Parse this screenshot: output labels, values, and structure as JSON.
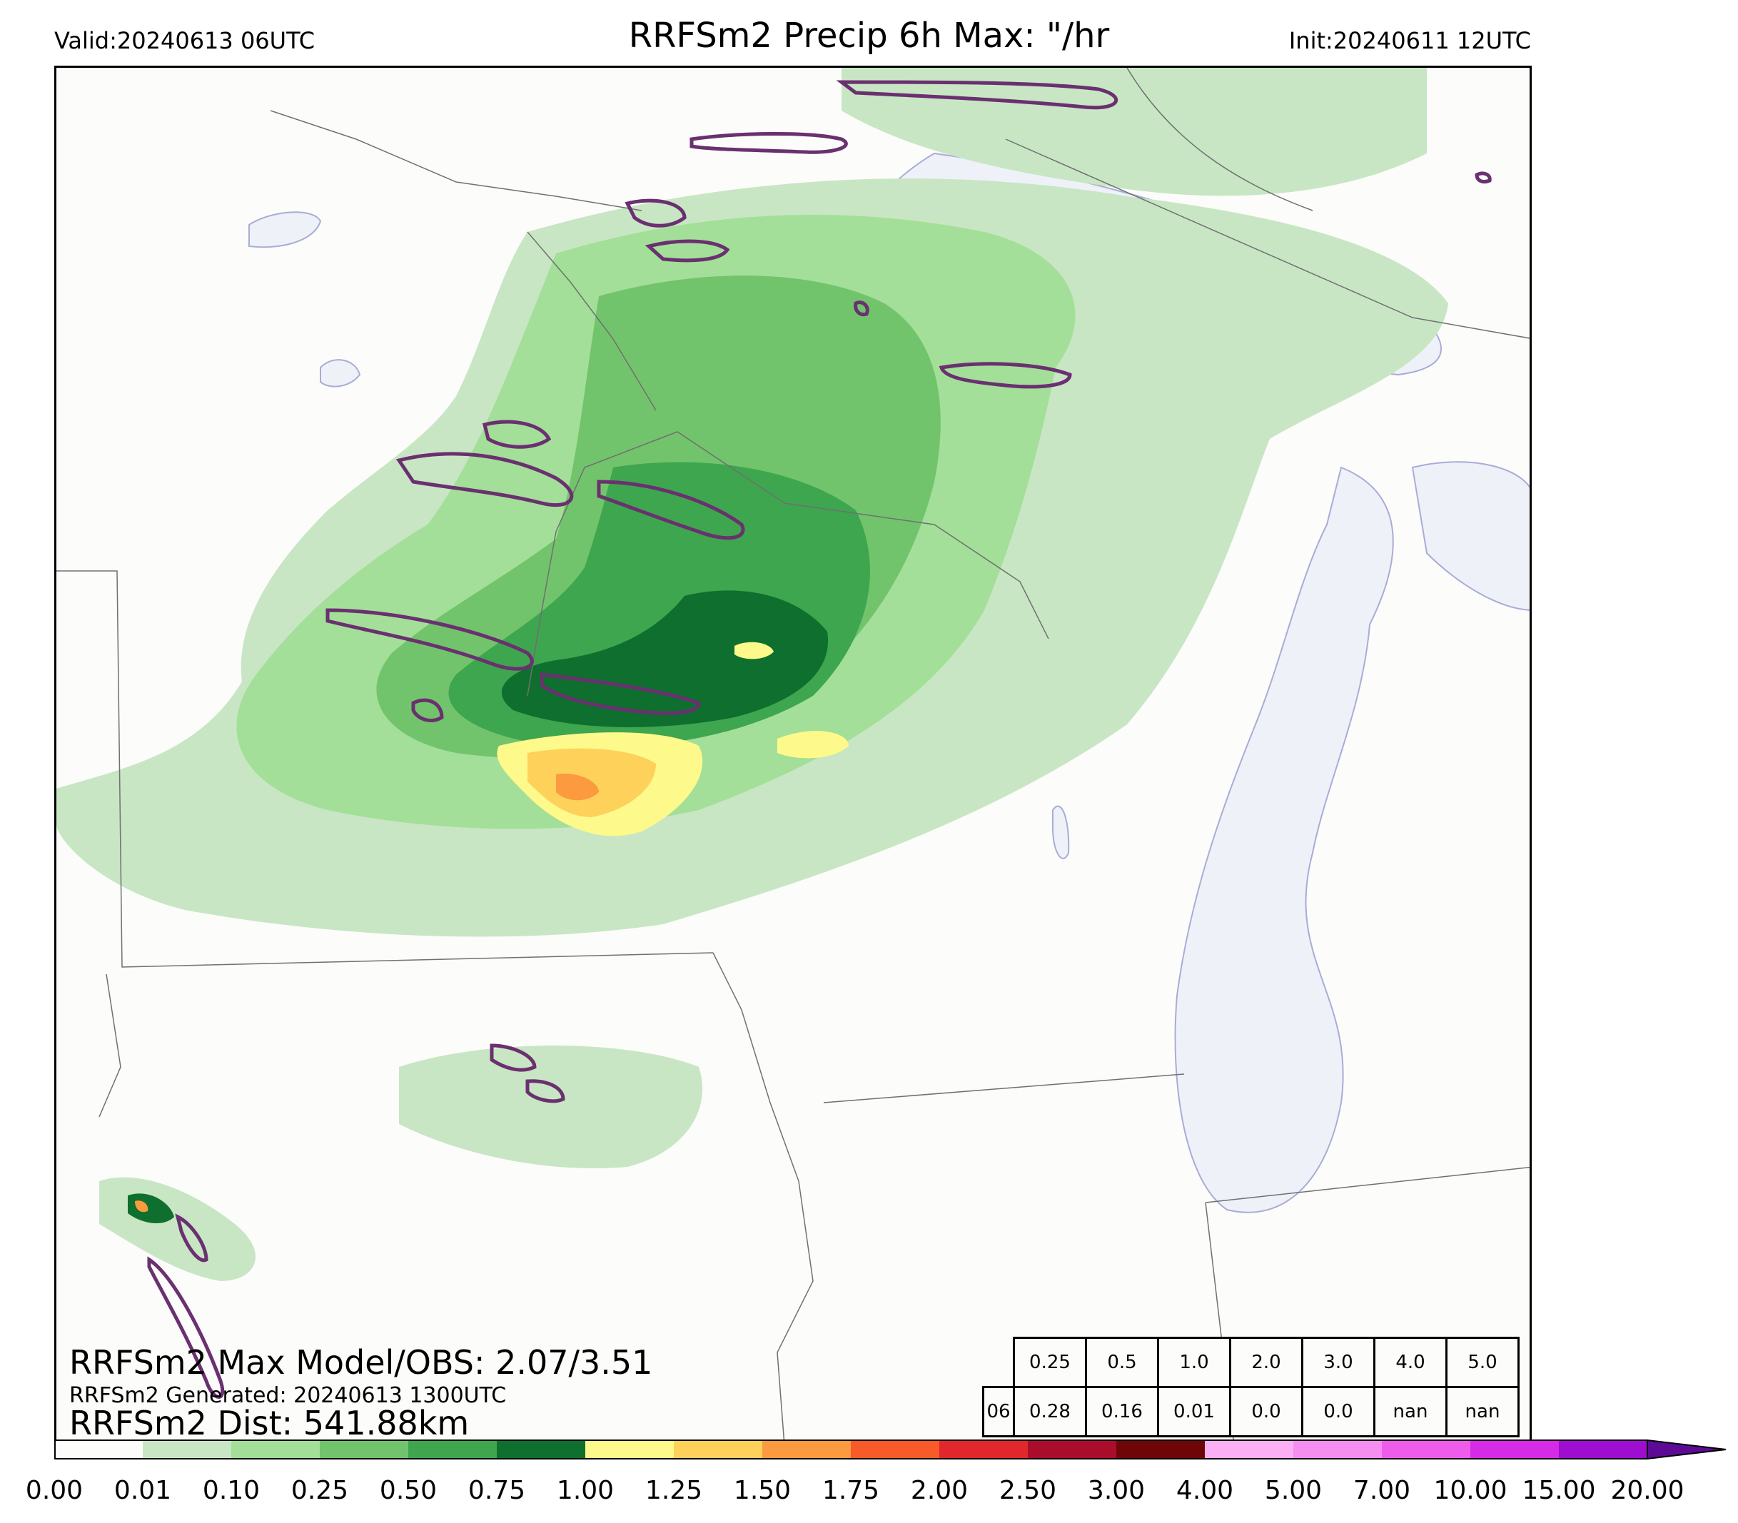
{
  "header": {
    "valid": "Valid:20240613 06UTC",
    "title": "RRFSm2 Precip 6h Max: \"/hr",
    "init": "Init:20240611 12UTC"
  },
  "stats": {
    "max_line": "RRFSm2 Max Model/OBS: 2.07/3.51",
    "generated_line": "RRFSm2 Generated: 20240613 1300UTC",
    "dist_line": "RRFSm2 Dist: 541.88km"
  },
  "threshold_table": {
    "row_label": "06",
    "thresholds": [
      "0.25",
      "0.5",
      "1.0",
      "2.0",
      "3.0",
      "4.0",
      "5.0"
    ],
    "values": [
      "0.28",
      "0.16",
      "0.01",
      "0.0",
      "0.0",
      "nan",
      "nan"
    ]
  },
  "colorbar": {
    "ticks": [
      "0.00",
      "0.01",
      "0.10",
      "0.25",
      "0.50",
      "0.75",
      "1.00",
      "1.25",
      "1.50",
      "1.75",
      "2.00",
      "2.50",
      "3.00",
      "4.00",
      "5.00",
      "7.00",
      "10.00",
      "15.00",
      "20.00"
    ],
    "colors": [
      "#fcfcfa",
      "#c8e6c4",
      "#a3df98",
      "#72c46c",
      "#3ea64e",
      "#0f6f2e",
      "#fdf98b",
      "#fdd15a",
      "#fb9a3e",
      "#f85a2a",
      "#e0272b",
      "#aa0c2c",
      "#6e0608",
      "#fcb0f4",
      "#f58ef0",
      "#ef5ceb",
      "#d52ae6",
      "#9d0ed0"
    ],
    "extend_color": "#5d0a96"
  },
  "map_colors": {
    "lake": "#eef2f8",
    "lake_edge": "#a9acd6",
    "border": "#707070",
    "obs_contour": "#6a3070"
  }
}
